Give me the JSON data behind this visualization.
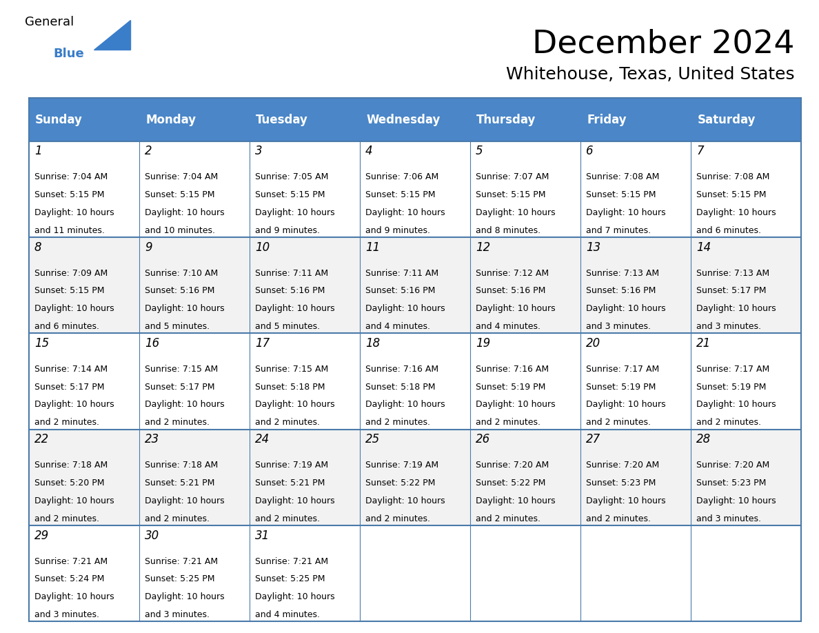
{
  "title": "December 2024",
  "subtitle": "Whitehouse, Texas, United States",
  "header_color": "#4a86c8",
  "header_text_color": "#ffffff",
  "cell_bg_white": "#ffffff",
  "cell_bg_gray": "#f2f2f2",
  "border_color": "#4a7aaa",
  "day_names": [
    "Sunday",
    "Monday",
    "Tuesday",
    "Wednesday",
    "Thursday",
    "Friday",
    "Saturday"
  ],
  "days": [
    {
      "date": 1,
      "col": 0,
      "row": 0,
      "sunrise": "7:04 AM",
      "sunset": "5:15 PM",
      "daylight_suffix": "11 minutes."
    },
    {
      "date": 2,
      "col": 1,
      "row": 0,
      "sunrise": "7:04 AM",
      "sunset": "5:15 PM",
      "daylight_suffix": "10 minutes."
    },
    {
      "date": 3,
      "col": 2,
      "row": 0,
      "sunrise": "7:05 AM",
      "sunset": "5:15 PM",
      "daylight_suffix": "9 minutes."
    },
    {
      "date": 4,
      "col": 3,
      "row": 0,
      "sunrise": "7:06 AM",
      "sunset": "5:15 PM",
      "daylight_suffix": "9 minutes."
    },
    {
      "date": 5,
      "col": 4,
      "row": 0,
      "sunrise": "7:07 AM",
      "sunset": "5:15 PM",
      "daylight_suffix": "8 minutes."
    },
    {
      "date": 6,
      "col": 5,
      "row": 0,
      "sunrise": "7:08 AM",
      "sunset": "5:15 PM",
      "daylight_suffix": "7 minutes."
    },
    {
      "date": 7,
      "col": 6,
      "row": 0,
      "sunrise": "7:08 AM",
      "sunset": "5:15 PM",
      "daylight_suffix": "6 minutes."
    },
    {
      "date": 8,
      "col": 0,
      "row": 1,
      "sunrise": "7:09 AM",
      "sunset": "5:15 PM",
      "daylight_suffix": "6 minutes."
    },
    {
      "date": 9,
      "col": 1,
      "row": 1,
      "sunrise": "7:10 AM",
      "sunset": "5:16 PM",
      "daylight_suffix": "5 minutes."
    },
    {
      "date": 10,
      "col": 2,
      "row": 1,
      "sunrise": "7:11 AM",
      "sunset": "5:16 PM",
      "daylight_suffix": "5 minutes."
    },
    {
      "date": 11,
      "col": 3,
      "row": 1,
      "sunrise": "7:11 AM",
      "sunset": "5:16 PM",
      "daylight_suffix": "4 minutes."
    },
    {
      "date": 12,
      "col": 4,
      "row": 1,
      "sunrise": "7:12 AM",
      "sunset": "5:16 PM",
      "daylight_suffix": "4 minutes."
    },
    {
      "date": 13,
      "col": 5,
      "row": 1,
      "sunrise": "7:13 AM",
      "sunset": "5:16 PM",
      "daylight_suffix": "3 minutes."
    },
    {
      "date": 14,
      "col": 6,
      "row": 1,
      "sunrise": "7:13 AM",
      "sunset": "5:17 PM",
      "daylight_suffix": "3 minutes."
    },
    {
      "date": 15,
      "col": 0,
      "row": 2,
      "sunrise": "7:14 AM",
      "sunset": "5:17 PM",
      "daylight_suffix": "2 minutes."
    },
    {
      "date": 16,
      "col": 1,
      "row": 2,
      "sunrise": "7:15 AM",
      "sunset": "5:17 PM",
      "daylight_suffix": "2 minutes."
    },
    {
      "date": 17,
      "col": 2,
      "row": 2,
      "sunrise": "7:15 AM",
      "sunset": "5:18 PM",
      "daylight_suffix": "2 minutes."
    },
    {
      "date": 18,
      "col": 3,
      "row": 2,
      "sunrise": "7:16 AM",
      "sunset": "5:18 PM",
      "daylight_suffix": "2 minutes."
    },
    {
      "date": 19,
      "col": 4,
      "row": 2,
      "sunrise": "7:16 AM",
      "sunset": "5:19 PM",
      "daylight_suffix": "2 minutes."
    },
    {
      "date": 20,
      "col": 5,
      "row": 2,
      "sunrise": "7:17 AM",
      "sunset": "5:19 PM",
      "daylight_suffix": "2 minutes."
    },
    {
      "date": 21,
      "col": 6,
      "row": 2,
      "sunrise": "7:17 AM",
      "sunset": "5:19 PM",
      "daylight_suffix": "2 minutes."
    },
    {
      "date": 22,
      "col": 0,
      "row": 3,
      "sunrise": "7:18 AM",
      "sunset": "5:20 PM",
      "daylight_suffix": "2 minutes."
    },
    {
      "date": 23,
      "col": 1,
      "row": 3,
      "sunrise": "7:18 AM",
      "sunset": "5:21 PM",
      "daylight_suffix": "2 minutes."
    },
    {
      "date": 24,
      "col": 2,
      "row": 3,
      "sunrise": "7:19 AM",
      "sunset": "5:21 PM",
      "daylight_suffix": "2 minutes."
    },
    {
      "date": 25,
      "col": 3,
      "row": 3,
      "sunrise": "7:19 AM",
      "sunset": "5:22 PM",
      "daylight_suffix": "2 minutes."
    },
    {
      "date": 26,
      "col": 4,
      "row": 3,
      "sunrise": "7:20 AM",
      "sunset": "5:22 PM",
      "daylight_suffix": "2 minutes."
    },
    {
      "date": 27,
      "col": 5,
      "row": 3,
      "sunrise": "7:20 AM",
      "sunset": "5:23 PM",
      "daylight_suffix": "2 minutes."
    },
    {
      "date": 28,
      "col": 6,
      "row": 3,
      "sunrise": "7:20 AM",
      "sunset": "5:23 PM",
      "daylight_suffix": "3 minutes."
    },
    {
      "date": 29,
      "col": 0,
      "row": 4,
      "sunrise": "7:21 AM",
      "sunset": "5:24 PM",
      "daylight_suffix": "3 minutes."
    },
    {
      "date": 30,
      "col": 1,
      "row": 4,
      "sunrise": "7:21 AM",
      "sunset": "5:25 PM",
      "daylight_suffix": "3 minutes."
    },
    {
      "date": 31,
      "col": 2,
      "row": 4,
      "sunrise": "7:21 AM",
      "sunset": "5:25 PM",
      "daylight_suffix": "4 minutes."
    }
  ],
  "num_rows": 5,
  "num_cols": 7,
  "title_fontsize": 34,
  "subtitle_fontsize": 18,
  "header_fontsize": 12,
  "date_fontsize": 12,
  "cell_fontsize": 9
}
